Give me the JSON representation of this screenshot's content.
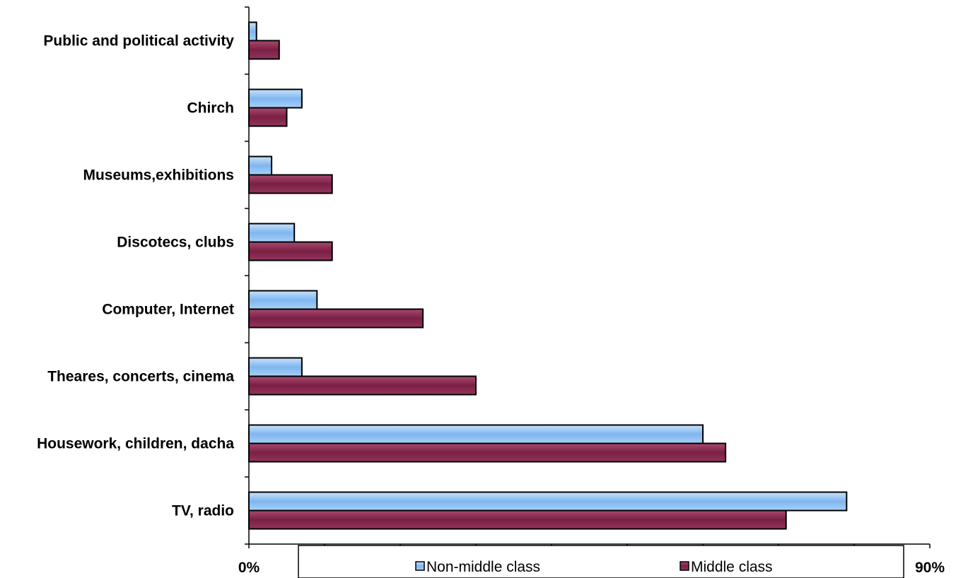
{
  "chart_data": {
    "type": "bar",
    "orientation": "horizontal",
    "categories": [
      "Public and political activity",
      "Chirch",
      "Museums,exhibitions",
      "Discotecs, clubs",
      "Computer, Internet",
      "Theares, concerts, cinema",
      "Housework, children, dacha",
      "TV, radio"
    ],
    "series": [
      {
        "name": "Non-middle class",
        "color": "#9fcbf7",
        "values": [
          1,
          7,
          3,
          6,
          9,
          7,
          60,
          79
        ]
      },
      {
        "name": "Middle class",
        "color": "#8b2c52",
        "values": [
          4,
          5,
          11,
          11,
          23,
          30,
          63,
          71
        ]
      }
    ],
    "xlim": [
      0,
      90
    ],
    "x_tick_labels": [
      "0%",
      "90%"
    ],
    "grid": false,
    "legend": "bottom"
  }
}
